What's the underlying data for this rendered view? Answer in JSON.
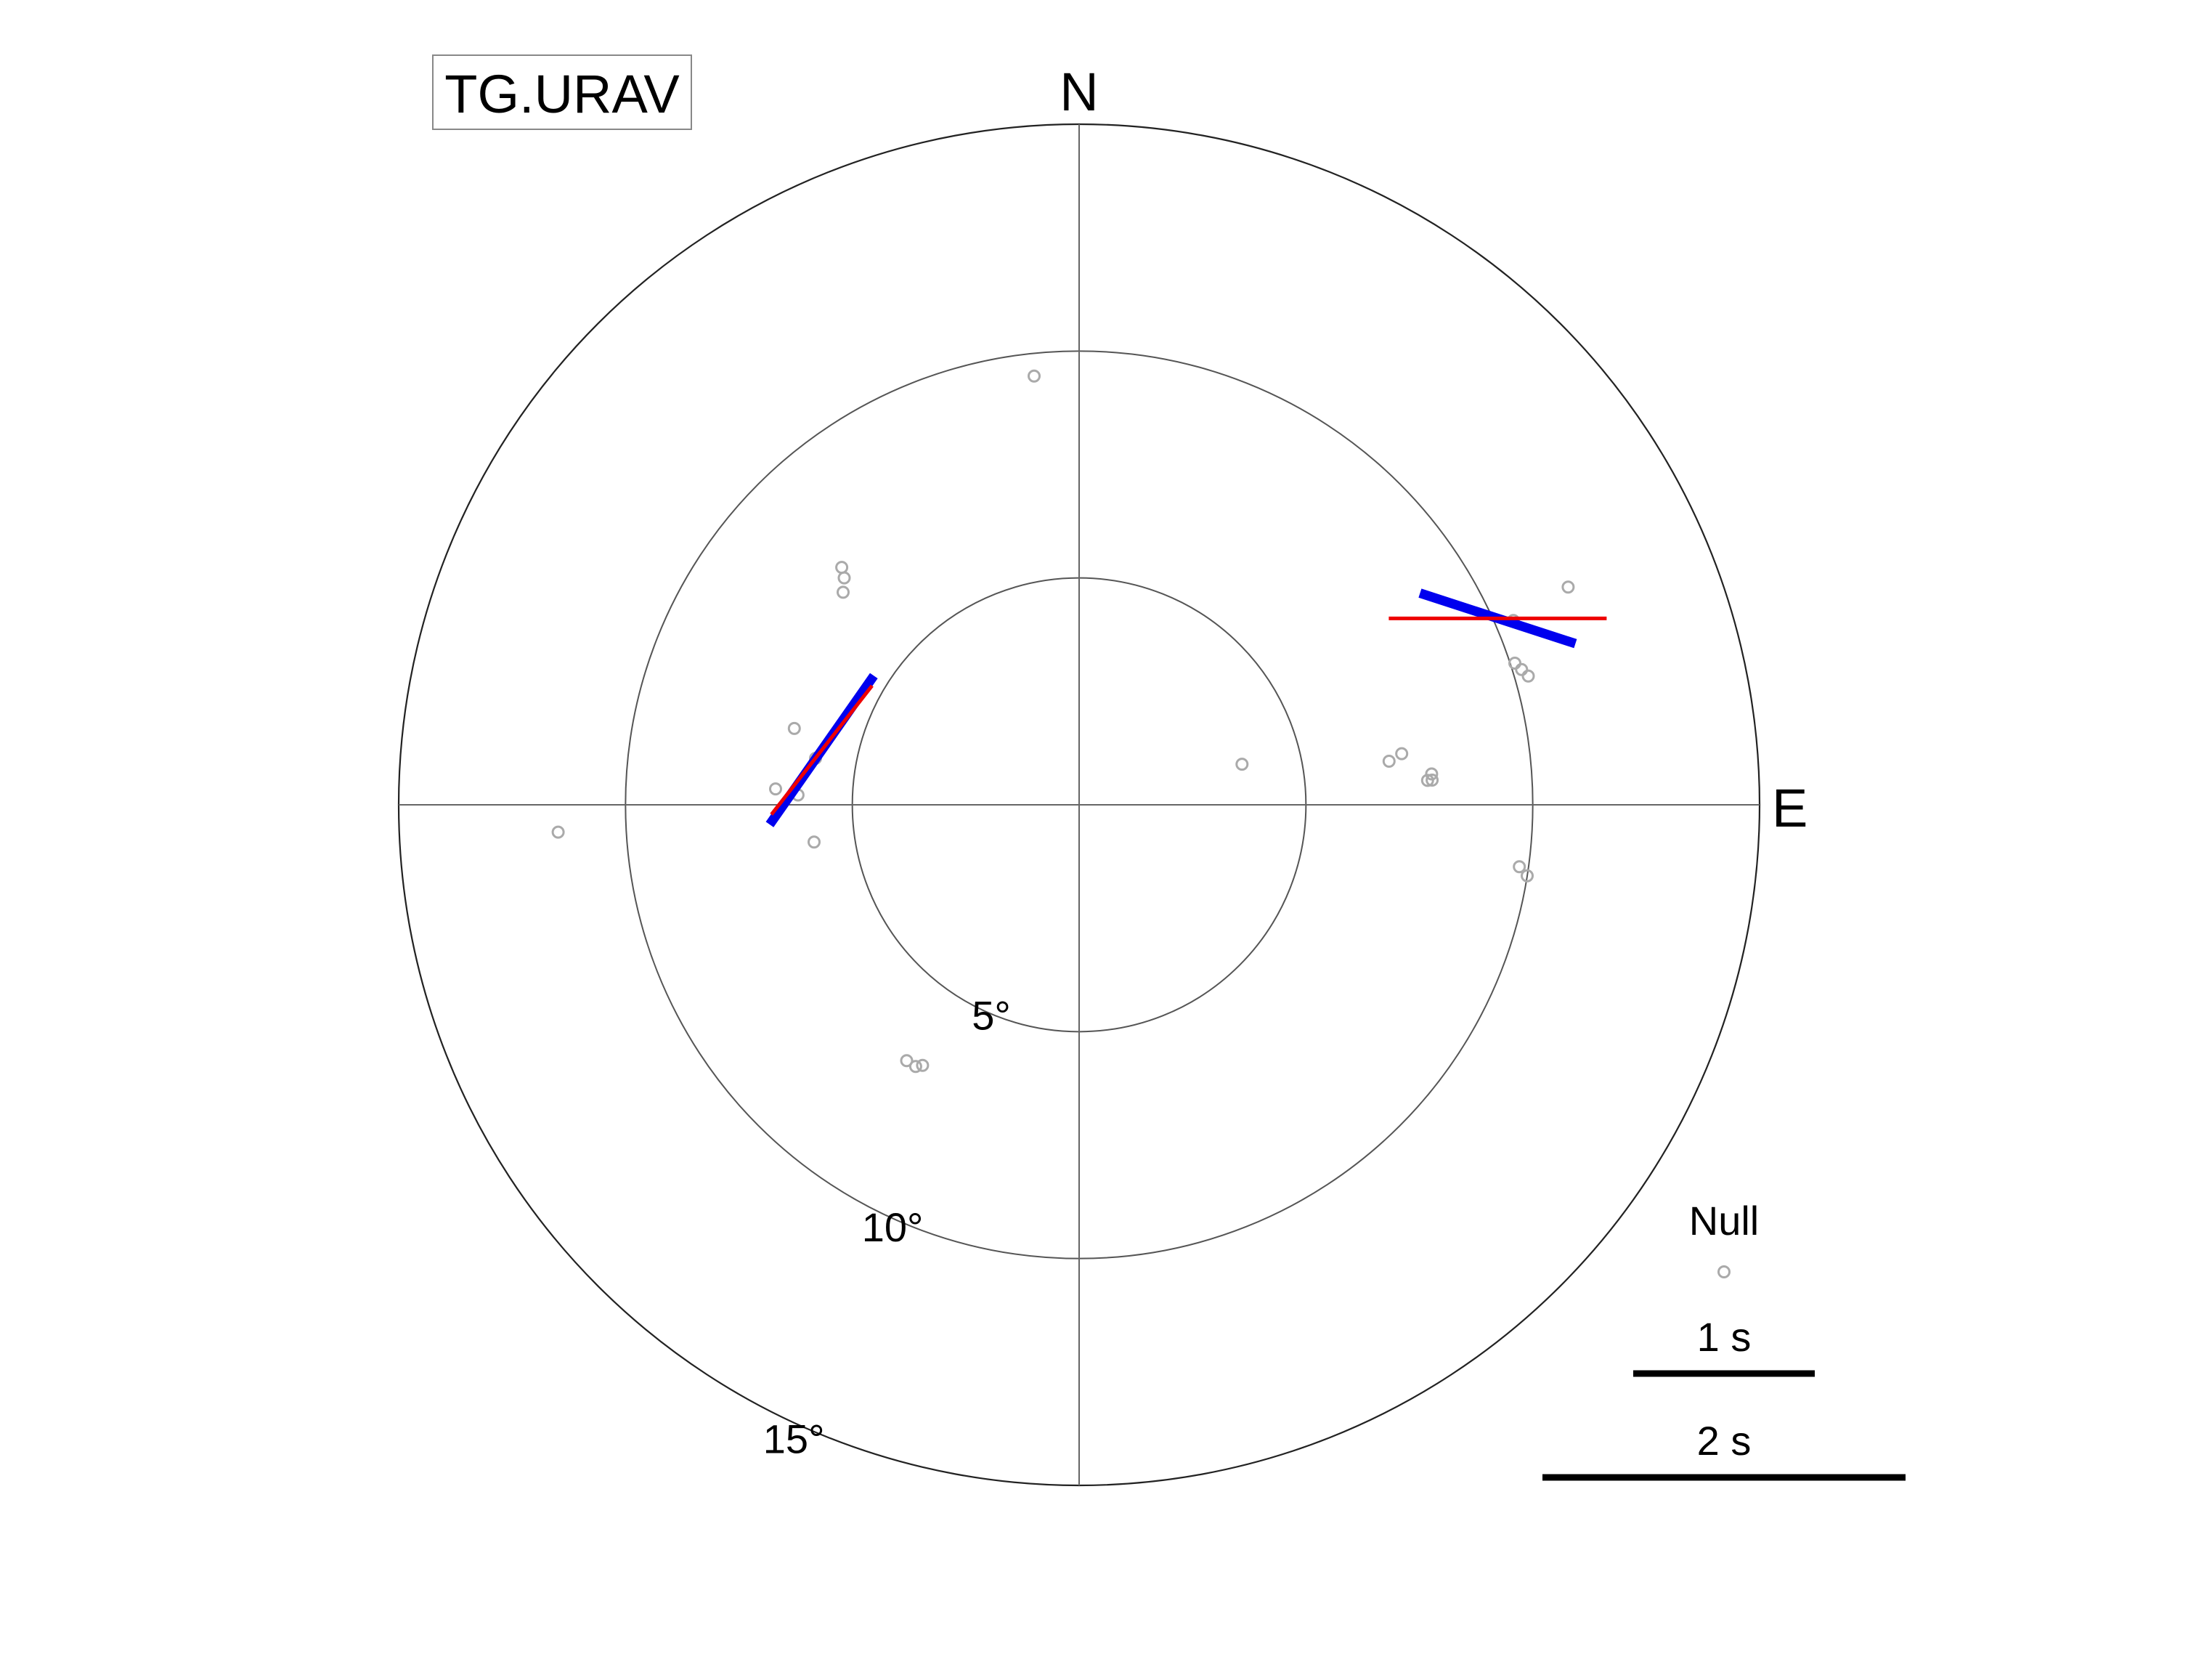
{
  "chart_data": {
    "type": "scatter",
    "projection": "polar",
    "title": "TG.URAV",
    "direction_labels": {
      "north": "N",
      "east": "E"
    },
    "rings": [
      {
        "value": 5,
        "label": "5°"
      },
      {
        "value": 10,
        "label": "10°"
      },
      {
        "value": 15,
        "label": "15°"
      }
    ],
    "r_max": 15,
    "colors": {
      "null": "#aaaaaa",
      "method_a": "#0000ee",
      "method_b": "#ee0000"
    },
    "null_legend_label": "Null",
    "null_measurements": [
      {
        "baz": 354,
        "inc": 9.5
      },
      {
        "baz": 315,
        "inc": 7.4
      },
      {
        "baz": 314,
        "inc": 7.2
      },
      {
        "baz": 312,
        "inc": 7.0
      },
      {
        "baz": 285,
        "inc": 6.5
      },
      {
        "baz": 280,
        "inc": 5.9
      },
      {
        "baz": 273,
        "inc": 6.7
      },
      {
        "baz": 272,
        "inc": 6.2
      },
      {
        "baz": 262,
        "inc": 5.9
      },
      {
        "baz": 267,
        "inc": 11.5
      },
      {
        "baz": 214,
        "inc": 6.8
      },
      {
        "baz": 212,
        "inc": 6.8
      },
      {
        "baz": 211,
        "inc": 6.7
      },
      {
        "baz": 76,
        "inc": 3.7
      },
      {
        "baz": 82,
        "inc": 6.9
      },
      {
        "baz": 81,
        "inc": 7.2
      },
      {
        "baz": 86,
        "inc": 7.8
      },
      {
        "baz": 85,
        "inc": 7.8
      },
      {
        "baz": 86,
        "inc": 7.7
      },
      {
        "baz": 74,
        "inc": 10.3
      },
      {
        "baz": 73,
        "inc": 10.2
      },
      {
        "baz": 72,
        "inc": 10.1
      },
      {
        "baz": 67,
        "inc": 10.4
      },
      {
        "baz": 66,
        "inc": 11.8
      },
      {
        "baz": 99,
        "inc": 10.0
      },
      {
        "baz": 98,
        "inc": 9.8
      }
    ],
    "splitting_measurements": [
      {
        "baz": 66,
        "inc": 10.1,
        "fast_axis_azimuth": 108,
        "delay_time_s": 0.9,
        "method": "method_a"
      },
      {
        "baz": 66,
        "inc": 10.1,
        "fast_axis_azimuth": 90,
        "delay_time_s": 1.2,
        "method": "method_b"
      },
      {
        "baz": 282,
        "inc": 5.8,
        "fast_axis_azimuth": 35,
        "delay_time_s": 1.0,
        "method": "method_a"
      },
      {
        "baz": 282,
        "inc": 5.8,
        "fast_axis_azimuth": 38,
        "delay_time_s": 0.9,
        "method": "method_b"
      }
    ],
    "scale_bars": [
      {
        "delay_time_s": 1,
        "label": "1 s"
      },
      {
        "delay_time_s": 2,
        "label": "2 s"
      }
    ]
  }
}
